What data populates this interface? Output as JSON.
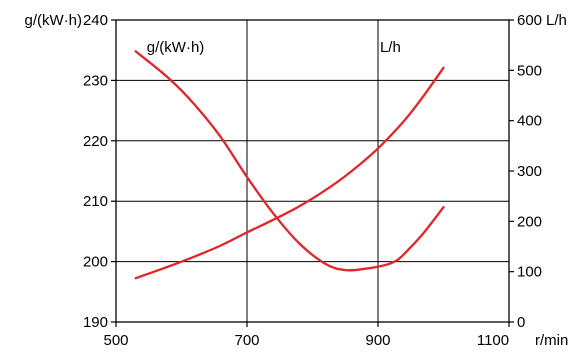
{
  "chart_data": {
    "type": "line",
    "x_axis": {
      "range": [
        500,
        1100
      ],
      "ticks": [
        500,
        700,
        900,
        1100
      ],
      "tick_labels": [
        "500",
        "700",
        "900",
        "1100"
      ],
      "unit": "r/min"
    },
    "y_left": {
      "range": [
        190,
        240
      ],
      "ticks": [
        190,
        200,
        210,
        220,
        230,
        240
      ],
      "tick_labels": [
        "190",
        "200",
        "210",
        "220",
        "230",
        "240"
      ],
      "unit": "g/(kW·h)"
    },
    "y_right": {
      "range": [
        0,
        600
      ],
      "ticks": [
        0,
        100,
        200,
        300,
        400,
        500,
        600
      ],
      "tick_labels": [
        "0",
        "100",
        "200",
        "300",
        "400",
        "500",
        "600"
      ],
      "unit": "L/h"
    },
    "grid": true,
    "series": [
      {
        "name": "g/(kW·h)",
        "axis": "left",
        "color": "#e0262b",
        "x": [
          530,
          580,
          620,
          660,
          700,
          740,
          780,
          820,
          850,
          880,
          910,
          930,
          950,
          970,
          1000
        ],
        "y": [
          234.8,
          230.4,
          226.0,
          220.6,
          214.0,
          208.0,
          203.0,
          199.6,
          198.6,
          198.8,
          199.4,
          200.3,
          202.4,
          204.8,
          209.0
        ]
      },
      {
        "name": "L/h",
        "axis": "right",
        "color": "#e0262b",
        "x": [
          530,
          580,
          620,
          660,
          700,
          740,
          780,
          820,
          860,
          900,
          940,
          970,
          1000
        ],
        "y": [
          87,
          110,
          130,
          152,
          178,
          203,
          230,
          262,
          300,
          345,
          400,
          450,
          505
        ]
      }
    ],
    "annotations": [
      {
        "text": "g/(kW·h)",
        "x": 547,
        "y_left": 235.5
      },
      {
        "text": "L/h",
        "x": 903,
        "y_left": 235.5
      }
    ]
  }
}
